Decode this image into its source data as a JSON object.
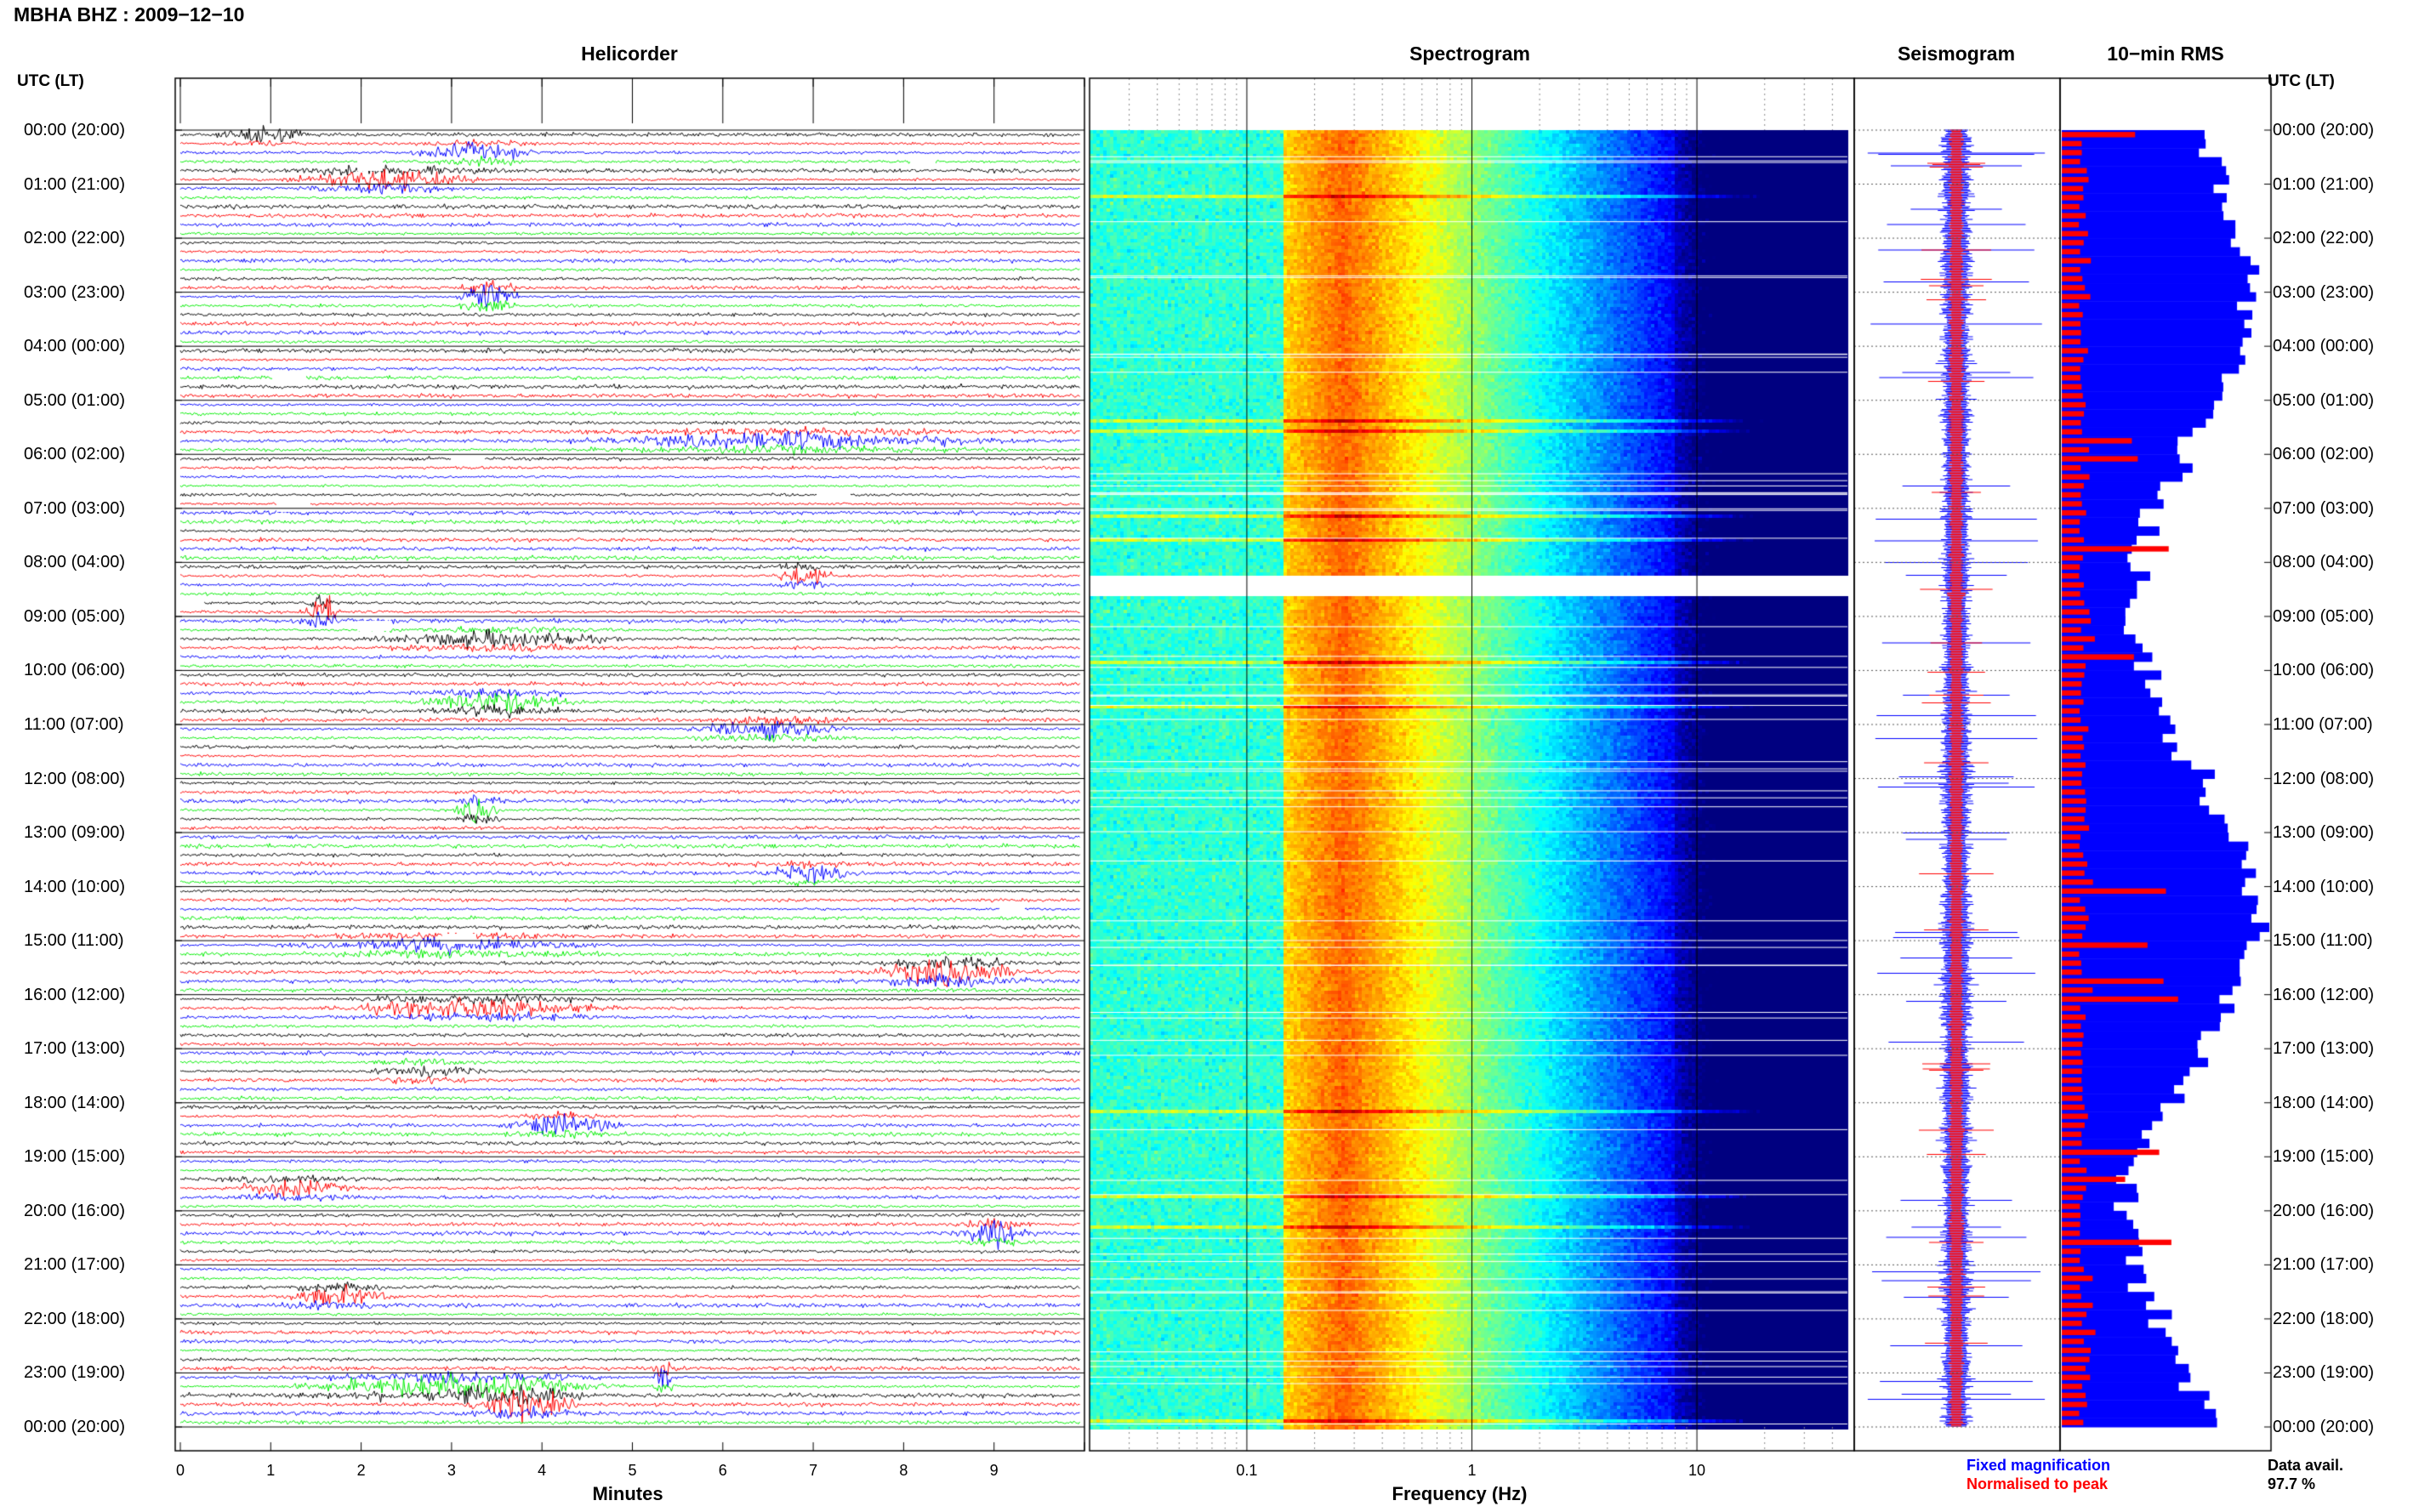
{
  "header": {
    "title": "MBHA BHZ : 2009−12−10"
  },
  "panels": {
    "helicorder": "Helicorder",
    "spectrogram": "Spectrogram",
    "seismogram": "Seismogram",
    "rms": "10−min RMS"
  },
  "axis": {
    "utc_label_left": "UTC (LT)",
    "utc_label_right": "UTC (LT)",
    "minutes_label": "Minutes",
    "frequency_label": "Frequency (Hz)",
    "minute_ticks": [
      "0",
      "1",
      "2",
      "3",
      "4",
      "5",
      "6",
      "7",
      "8",
      "9"
    ],
    "frequency_ticks": [
      "0.1",
      "1",
      "10"
    ]
  },
  "legend": {
    "fixed": "Fixed magnification",
    "normalised": "Normalised to peak",
    "fixed_color": "#0000ff",
    "normalised_color": "#ff0000"
  },
  "data_availability": {
    "label": "Data avail.",
    "value": "97.7 %"
  },
  "chart_data": {
    "type": "heatmap",
    "title": "MBHA BHZ : 2009−12−10",
    "hours_utc": [
      "00:00 (20:00)",
      "01:00 (21:00)",
      "02:00 (22:00)",
      "03:00 (23:00)",
      "04:00 (00:00)",
      "05:00 (01:00)",
      "06:00 (02:00)",
      "07:00 (03:00)",
      "08:00 (04:00)",
      "09:00 (05:00)",
      "10:00 (06:00)",
      "11:00 (07:00)",
      "12:00 (08:00)",
      "13:00 (09:00)",
      "14:00 (10:00)",
      "15:00 (11:00)",
      "16:00 (12:00)",
      "17:00 (13:00)",
      "18:00 (14:00)",
      "19:00 (15:00)",
      "20:00 (16:00)",
      "21:00 (17:00)",
      "22:00 (18:00)",
      "23:00 (19:00)",
      "00:00 (20:00)"
    ],
    "helicorder": {
      "xlabel": "Minutes",
      "xlim": [
        0,
        10
      ],
      "trace_colors": [
        "#000000",
        "#ff0000",
        "#0000ff",
        "#00ee00"
      ]
    },
    "spectrogram": {
      "xlabel": "Frequency (Hz)",
      "scale": "log",
      "xlim": [
        0.02,
        50
      ]
    },
    "rms_10min": {
      "series": [
        {
          "name": "Fixed magnification"
        },
        {
          "name": "Normalised to peak"
        }
      ]
    },
    "data_available_percent": 97.7
  }
}
